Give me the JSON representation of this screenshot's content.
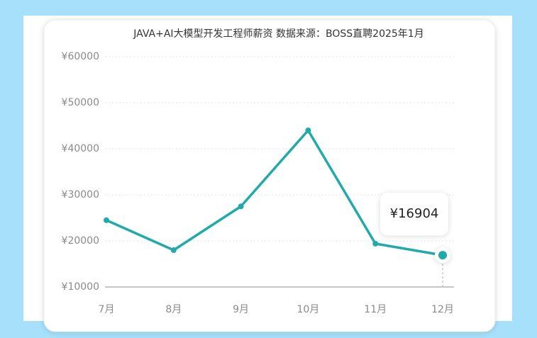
{
  "chart_data": {
    "type": "line",
    "title": "JAVA+AI大模型开发工程师薪资 数据来源：BOSS直聘2025年1月",
    "categories": [
      "7月",
      "8月",
      "9月",
      "10月",
      "11月",
      "12月"
    ],
    "values": [
      24500,
      18000,
      27500,
      44000,
      19400,
      16904
    ],
    "value_labels": [
      null,
      null,
      null,
      null,
      null,
      "¥16904"
    ],
    "color": "#21aaa9",
    "ylim": [
      10000,
      60000
    ],
    "yticks": [
      {
        "value": 10000,
        "label": "¥10000"
      },
      {
        "value": 20000,
        "label": "¥20000"
      },
      {
        "value": 30000,
        "label": "¥30000"
      },
      {
        "value": 40000,
        "label": "¥40000"
      },
      {
        "value": 50000,
        "label": "¥50000"
      },
      {
        "value": 60000,
        "label": "¥60000"
      }
    ],
    "grid": true
  }
}
